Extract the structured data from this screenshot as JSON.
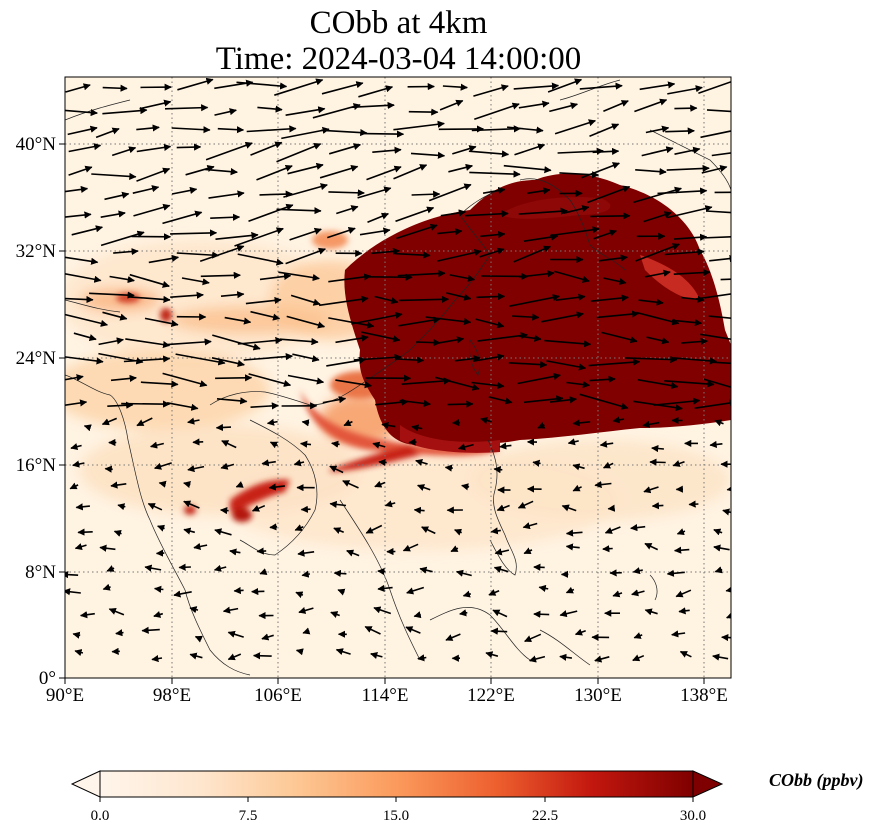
{
  "title": {
    "line1": "CObb at 4km",
    "line2": "Time: 2024-03-04 14:00:00"
  },
  "map": {
    "lon_range": [
      90,
      140
    ],
    "lat_range": [
      0,
      45
    ],
    "x_ticks": [
      "90°E",
      "98°E",
      "106°E",
      "114°E",
      "122°E",
      "130°E",
      "138°E"
    ],
    "y_ticks": [
      "0°",
      "8°N",
      "16°N",
      "24°N",
      "32°N",
      "40°N"
    ],
    "gridlines": true,
    "background_color": "#fff3e2"
  },
  "colorbar": {
    "label": "CObb (ppbv)",
    "ticks": [
      "0.0",
      "7.5",
      "15.0",
      "22.5",
      "30.0"
    ],
    "range": [
      0,
      30
    ],
    "extend": "both",
    "colors": [
      "#fff5eb",
      "#fdd9b4",
      "#fdb07a",
      "#f5733e",
      "#d93b1f",
      "#a90f0f",
      "#7f0000"
    ]
  }
}
